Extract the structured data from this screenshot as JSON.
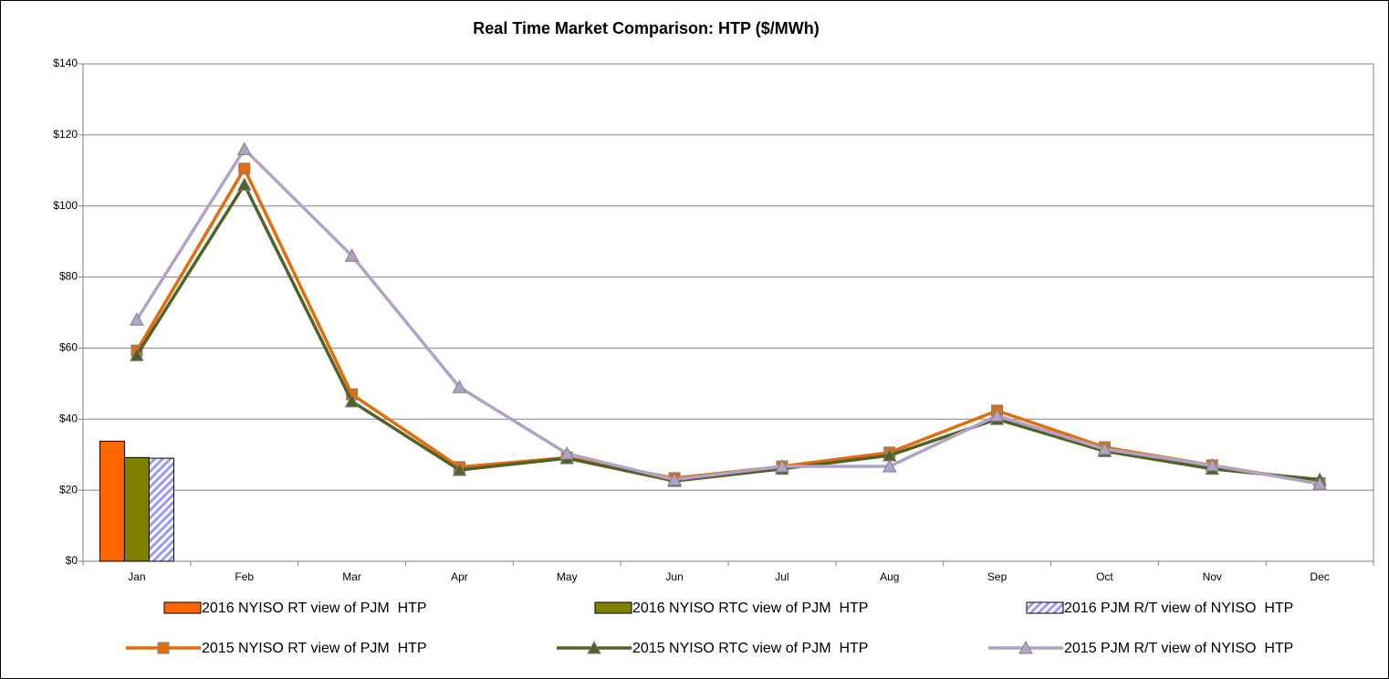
{
  "chart_data": {
    "type": "bar_line",
    "title": "Real Time Market Comparison: HTP ($/MWh)",
    "categories": [
      "Jan",
      "Feb",
      "Mar",
      "Apr",
      "May",
      "Jun",
      "Jul",
      "Aug",
      "Sep",
      "Oct",
      "Nov",
      "Dec"
    ],
    "ylim": [
      0,
      140
    ],
    "yticks": [
      {
        "value": 0,
        "label": "$0"
      },
      {
        "value": 20,
        "label": "$20"
      },
      {
        "value": 40,
        "label": "$40"
      },
      {
        "value": 60,
        "label": "$60"
      },
      {
        "value": 80,
        "label": "$80"
      },
      {
        "value": 100,
        "label": "$100"
      },
      {
        "value": 120,
        "label": "$120"
      },
      {
        "value": 140,
        "label": "$140"
      }
    ],
    "grid": true,
    "series": [
      {
        "name": "2016 NYISO RT view of PJM  HTP",
        "type": "bar",
        "color": "#ff6600",
        "values": [
          33.8,
          null,
          null,
          null,
          null,
          null,
          null,
          null,
          null,
          null,
          null,
          null
        ]
      },
      {
        "name": "2016 NYISO RTC view of PJM  HTP",
        "type": "bar",
        "color": "#808000",
        "values": [
          29.2,
          null,
          null,
          null,
          null,
          null,
          null,
          null,
          null,
          null,
          null,
          null
        ]
      },
      {
        "name": "2016 PJM R/T view of NYISO  HTP",
        "type": "bar",
        "color": "#9999ff",
        "hatch": true,
        "values": [
          29.0,
          null,
          null,
          null,
          null,
          null,
          null,
          null,
          null,
          null,
          null,
          null
        ]
      },
      {
        "name": "2015 NYISO RT view of PJM  HTP",
        "type": "line",
        "color": "#e46c0a",
        "marker": "square",
        "values": [
          59.3,
          110.5,
          47,
          26.5,
          29.2,
          23.4,
          26.7,
          30.6,
          42.4,
          32.1,
          27,
          22
        ]
      },
      {
        "name": "2015 NYISO RTC view of PJM  HTP",
        "type": "line",
        "color": "#4f6228",
        "marker": "triangle",
        "values": [
          58,
          106,
          45,
          25.7,
          29,
          22.6,
          26,
          29.8,
          40,
          31,
          26,
          23
        ]
      },
      {
        "name": "2015 PJM R/T view of NYISO  HTP",
        "type": "line",
        "color": "#b3a2c7",
        "marker": "triangle",
        "values": [
          68,
          116,
          86,
          49,
          30.3,
          23,
          26.7,
          26.7,
          41,
          31.6,
          27,
          21.8
        ]
      }
    ]
  }
}
